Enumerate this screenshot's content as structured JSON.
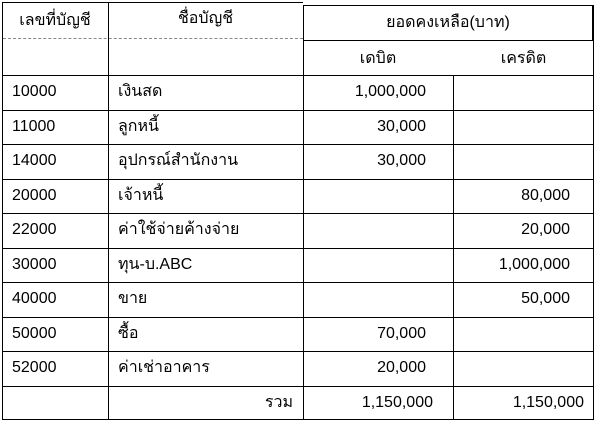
{
  "header": {
    "account_no": "เลขที่บัญชี",
    "account_name": "ชื่อบัญชี",
    "balance": "ยอดคงเหลือ(บาท)",
    "debit": "เดบิต",
    "credit": "เครดิต"
  },
  "rows": [
    {
      "no": "10000",
      "name": "เงินสด",
      "debit": "1,000,000",
      "credit": ""
    },
    {
      "no": "11000",
      "name": "ลูกหนี้",
      "debit": "30,000",
      "credit": ""
    },
    {
      "no": "14000",
      "name": "อุปกรณ์สำนักงาน",
      "debit": "30,000",
      "credit": ""
    },
    {
      "no": "20000",
      "name": "เจ้าหนี้",
      "debit": "",
      "credit": "80,000"
    },
    {
      "no": "22000",
      "name": "ค่าใช้จ่ายค้างจ่าย",
      "debit": "",
      "credit": "20,000"
    },
    {
      "no": "30000",
      "name": "ทุน-บ.ABC",
      "debit": "",
      "credit": "1,000,000"
    },
    {
      "no": "40000",
      "name": "ขาย",
      "debit": "",
      "credit": "50,000"
    },
    {
      "no": "50000",
      "name": "ซื้อ",
      "debit": "70,000",
      "credit": ""
    },
    {
      "no": "52000",
      "name": "ค่าเช่าอาคาร",
      "debit": "20,000",
      "credit": ""
    }
  ],
  "total": {
    "label": "รวม",
    "debit": "1,150,000",
    "credit": "1,150,000"
  }
}
